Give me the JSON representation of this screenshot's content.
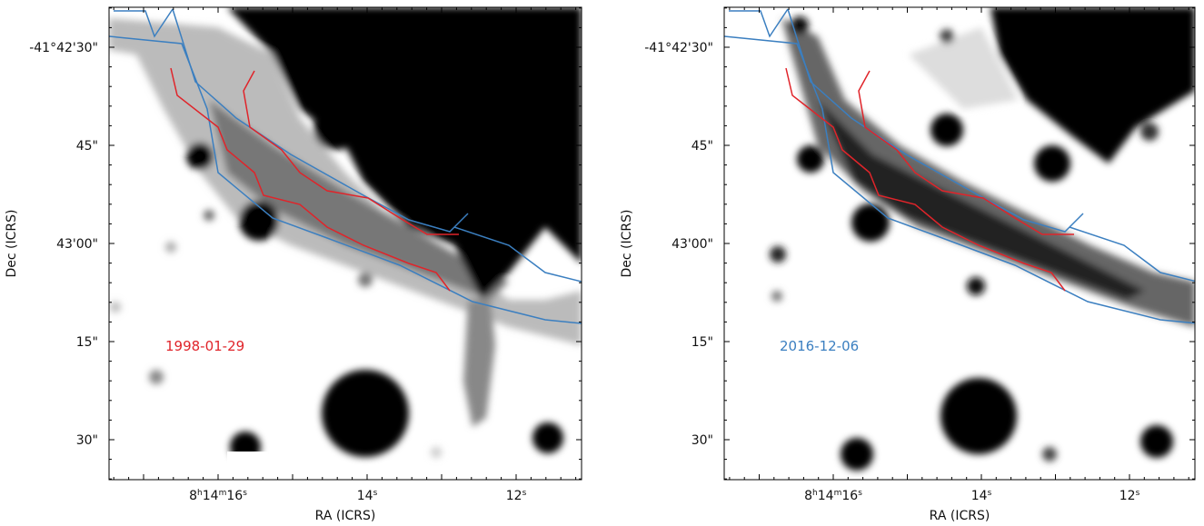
{
  "panels": [
    {
      "annotation": "1998-01-29",
      "x_label": "RA (ICRS)",
      "y_label": "Dec (ICRS)",
      "y_ticks": [
        "-41°42'30\"",
        "45\"",
        "43'00\"",
        "15\"",
        "30\""
      ],
      "x_ticks": [
        {
          "parts": [
            "8",
            "h",
            "14",
            "m",
            "16",
            "s"
          ]
        },
        {
          "parts": [
            "14",
            "s"
          ]
        },
        {
          "parts": [
            "12",
            "s"
          ]
        }
      ]
    },
    {
      "annotation": "2016-12-06",
      "x_label": "RA (ICRS)",
      "y_label": "Dec (ICRS)",
      "y_ticks": [
        "-41°42'30\"",
        "45\"",
        "43'00\"",
        "15\"",
        "30\""
      ],
      "x_ticks": [
        {
          "parts": [
            "8",
            "h",
            "14",
            "m",
            "16",
            "s"
          ]
        },
        {
          "parts": [
            "14",
            "s"
          ]
        },
        {
          "parts": [
            "12",
            "s"
          ]
        }
      ]
    }
  ]
}
